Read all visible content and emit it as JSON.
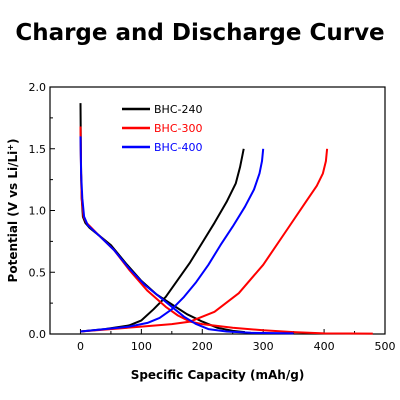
{
  "chart_data": {
    "type": "line",
    "title": "Charge and Discharge Curve",
    "xlabel": "Specific Capacity (mAh/g)",
    "ylabel_main": "Potential (V vs Li/Li",
    "ylabel_sup": "+",
    "ylabel_end": ")",
    "xlim": [
      -50,
      500
    ],
    "ylim": [
      0,
      2.0
    ],
    "xticks": [
      "0",
      "100",
      "200",
      "300",
      "400",
      "500"
    ],
    "yticks": [
      "0.0",
      "0.5",
      "1.0",
      "1.5",
      "2.0"
    ],
    "grid": false,
    "legend_position": "top-left",
    "series": [
      {
        "name": "BHC-240",
        "color": "#000000",
        "discharge": [
          [
            0,
            1.87
          ],
          [
            0.5,
            1.55
          ],
          [
            1,
            1.3
          ],
          [
            2,
            1.1
          ],
          [
            4,
            0.95
          ],
          [
            8,
            0.9
          ],
          [
            15,
            0.86
          ],
          [
            30,
            0.8
          ],
          [
            50,
            0.72
          ],
          [
            75,
            0.57
          ],
          [
            100,
            0.43
          ],
          [
            125,
            0.32
          ],
          [
            150,
            0.24
          ],
          [
            175,
            0.16
          ],
          [
            200,
            0.1
          ],
          [
            225,
            0.05
          ],
          [
            250,
            0.025
          ],
          [
            270,
            0.015
          ]
        ],
        "charge": [
          [
            0,
            0.02
          ],
          [
            40,
            0.04
          ],
          [
            80,
            0.07
          ],
          [
            100,
            0.11
          ],
          [
            120,
            0.2
          ],
          [
            140,
            0.3
          ],
          [
            160,
            0.44
          ],
          [
            180,
            0.58
          ],
          [
            200,
            0.74
          ],
          [
            220,
            0.9
          ],
          [
            240,
            1.07
          ],
          [
            255,
            1.22
          ],
          [
            262,
            1.35
          ],
          [
            266,
            1.45
          ],
          [
            268,
            1.5
          ]
        ]
      },
      {
        "name": "BHC-300",
        "color": "#ff0000",
        "discharge": [
          [
            0,
            1.68
          ],
          [
            1,
            1.3
          ],
          [
            2,
            1.1
          ],
          [
            5,
            0.95
          ],
          [
            10,
            0.9
          ],
          [
            30,
            0.8
          ],
          [
            55,
            0.68
          ],
          [
            80,
            0.52
          ],
          [
            110,
            0.35
          ],
          [
            140,
            0.22
          ],
          [
            160,
            0.15
          ],
          [
            180,
            0.1
          ],
          [
            200,
            0.08
          ],
          [
            250,
            0.05
          ],
          [
            300,
            0.03
          ],
          [
            350,
            0.015
          ],
          [
            400,
            0.005
          ],
          [
            480,
            0.003
          ]
        ],
        "charge": [
          [
            0,
            0.02
          ],
          [
            50,
            0.04
          ],
          [
            100,
            0.06
          ],
          [
            150,
            0.08
          ],
          [
            180,
            0.1
          ],
          [
            220,
            0.18
          ],
          [
            260,
            0.33
          ],
          [
            300,
            0.56
          ],
          [
            340,
            0.85
          ],
          [
            370,
            1.07
          ],
          [
            388,
            1.2
          ],
          [
            398,
            1.3
          ],
          [
            403,
            1.4
          ],
          [
            405,
            1.5
          ]
        ]
      },
      {
        "name": "BHC-400",
        "color": "#0000ff",
        "discharge": [
          [
            0,
            1.6
          ],
          [
            1,
            1.3
          ],
          [
            3,
            1.1
          ],
          [
            6,
            0.95
          ],
          [
            12,
            0.88
          ],
          [
            30,
            0.8
          ],
          [
            55,
            0.68
          ],
          [
            80,
            0.53
          ],
          [
            105,
            0.4
          ],
          [
            130,
            0.3
          ],
          [
            150,
            0.22
          ],
          [
            170,
            0.14
          ],
          [
            190,
            0.08
          ],
          [
            210,
            0.04
          ],
          [
            240,
            0.02
          ],
          [
            280,
            0.01
          ],
          [
            350,
            0.005
          ]
        ],
        "charge": [
          [
            0,
            0.02
          ],
          [
            40,
            0.04
          ],
          [
            80,
            0.06
          ],
          [
            110,
            0.09
          ],
          [
            130,
            0.13
          ],
          [
            150,
            0.2
          ],
          [
            170,
            0.3
          ],
          [
            190,
            0.42
          ],
          [
            210,
            0.56
          ],
          [
            230,
            0.72
          ],
          [
            250,
            0.87
          ],
          [
            270,
            1.03
          ],
          [
            285,
            1.17
          ],
          [
            294,
            1.3
          ],
          [
            298,
            1.4
          ],
          [
            300,
            1.5
          ]
        ]
      }
    ]
  }
}
